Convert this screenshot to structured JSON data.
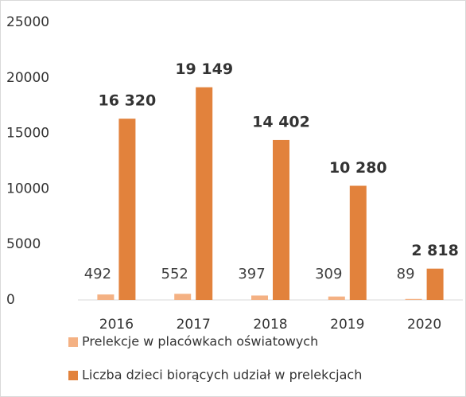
{
  "chart_data": {
    "type": "bar",
    "categories": [
      "2016",
      "2017",
      "2018",
      "2019",
      "2020"
    ],
    "series": [
      {
        "name": "Prelekcje w placówkach oświatowych",
        "color": "#f4b183",
        "values": [
          492,
          552,
          397,
          309,
          89
        ]
      },
      {
        "name": "Liczba dzieci biorących udział w prelekcjach",
        "color": "#e2823c",
        "values": [
          16320,
          19149,
          14402,
          10280,
          2818
        ],
        "value_labels": [
          "16 320",
          "19 149",
          "14 402",
          "10 280",
          "2 818"
        ]
      }
    ],
    "ylim": [
      0,
      25000
    ],
    "yticks": [
      0,
      5000,
      10000,
      15000,
      20000,
      25000
    ],
    "grid": false
  }
}
